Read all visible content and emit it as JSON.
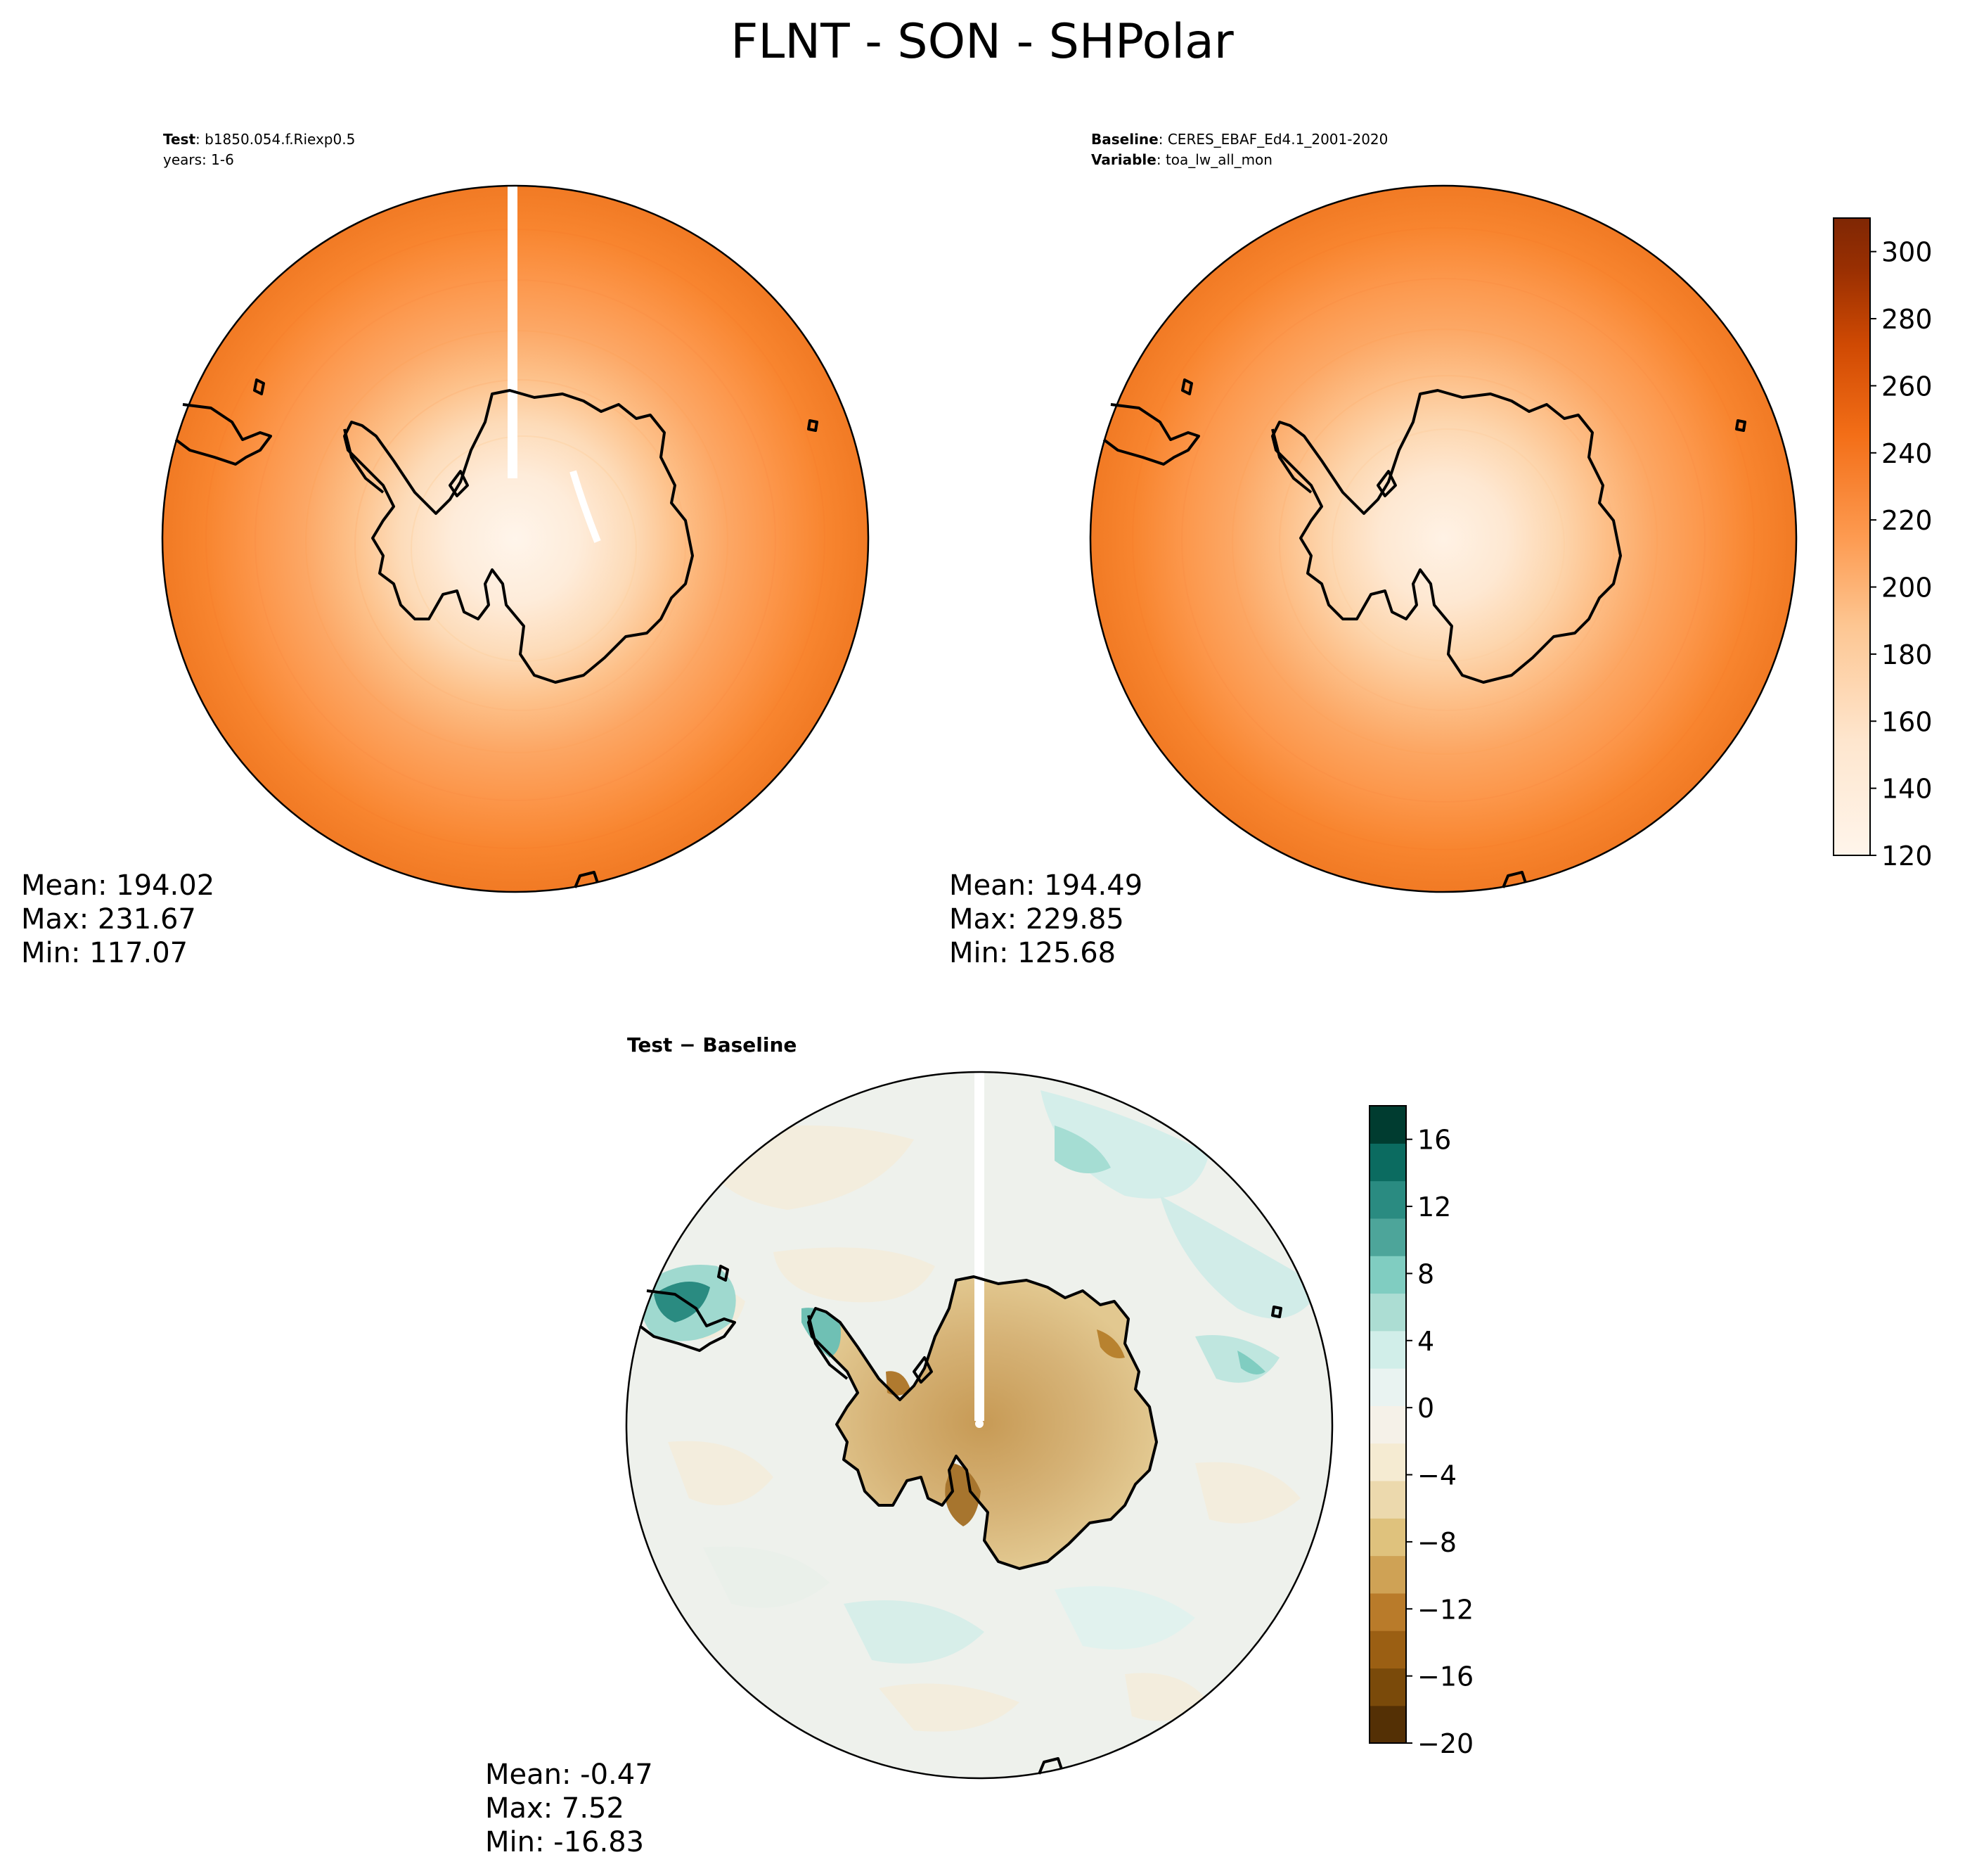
{
  "title": "FLNT - SON - SHPolar",
  "panels": {
    "test": {
      "label_bold": "Test",
      "label_text": "b1850.054.f.Riexp0.5",
      "line2": "years: 1-6",
      "stats": {
        "mean": "Mean: 194.02",
        "max": "Max: 231.67",
        "min": "Min: 117.07"
      }
    },
    "baseline": {
      "label_bold": "Baseline",
      "label_text": "CERES_EBAF_Ed4.1_2001-2020",
      "label2_bold": "Variable",
      "label2_text": "toa_lw_all_mon",
      "stats": {
        "mean": "Mean: 194.49",
        "max": "Max: 229.85",
        "min": "Min: 125.68"
      }
    },
    "diff": {
      "label": "Test − Baseline",
      "stats": {
        "mean": "Mean: -0.47",
        "max": "Max:  7.52",
        "min": "Min: -16.83"
      }
    }
  },
  "colors": {
    "test_colormap": [
      "#fff5eb",
      "#fee6ce",
      "#fdd9b4",
      "#fdc692",
      "#fdb170",
      "#fd9a50",
      "#fb8330",
      "#f36e17",
      "#e55a09",
      "#d04a03",
      "#b43e03",
      "#992f02",
      "#7f2704"
    ],
    "diff_colormap": [
      "#543005",
      "#7a4a0a",
      "#9b5f13",
      "#b97b2a",
      "#cfa255",
      "#dfc27d",
      "#ecd9ad",
      "#f5ebd2",
      "#f5f1e8",
      "#e9f3f1",
      "#d1eee9",
      "#acddd3",
      "#80cdc1",
      "#4da59a",
      "#2a8b81",
      "#0b6b60",
      "#003c30"
    ]
  },
  "chart_data": [
    {
      "type": "heatmap",
      "name": "test",
      "projection": "south-polar-stereographic",
      "stats": {
        "mean": 194.02,
        "max": 231.67,
        "min": 117.07
      }
    },
    {
      "type": "heatmap",
      "name": "baseline",
      "projection": "south-polar-stereographic",
      "stats": {
        "mean": 194.49,
        "max": 229.85,
        "min": 125.68
      },
      "colorbar": {
        "range": [
          120,
          310
        ],
        "ticks": [
          120,
          140,
          160,
          180,
          200,
          220,
          240,
          260,
          280,
          300
        ],
        "tick_labels": [
          "120",
          "140",
          "160",
          "180",
          "200",
          "220",
          "240",
          "260",
          "280",
          "300"
        ],
        "levels": 19
      }
    },
    {
      "type": "heatmap",
      "name": "diff",
      "projection": "south-polar-stereographic",
      "stats": {
        "mean": -0.47,
        "max": 7.52,
        "min": -16.83
      },
      "colorbar": {
        "range": [
          -20,
          18
        ],
        "ticks": [
          -20,
          -16,
          -12,
          -8,
          -4,
          0,
          4,
          8,
          12,
          16
        ],
        "tick_labels": [
          "−20",
          "−16",
          "−12",
          "−8",
          "−4",
          "0",
          "4",
          "8",
          "12",
          "16"
        ],
        "levels": 19
      }
    }
  ]
}
